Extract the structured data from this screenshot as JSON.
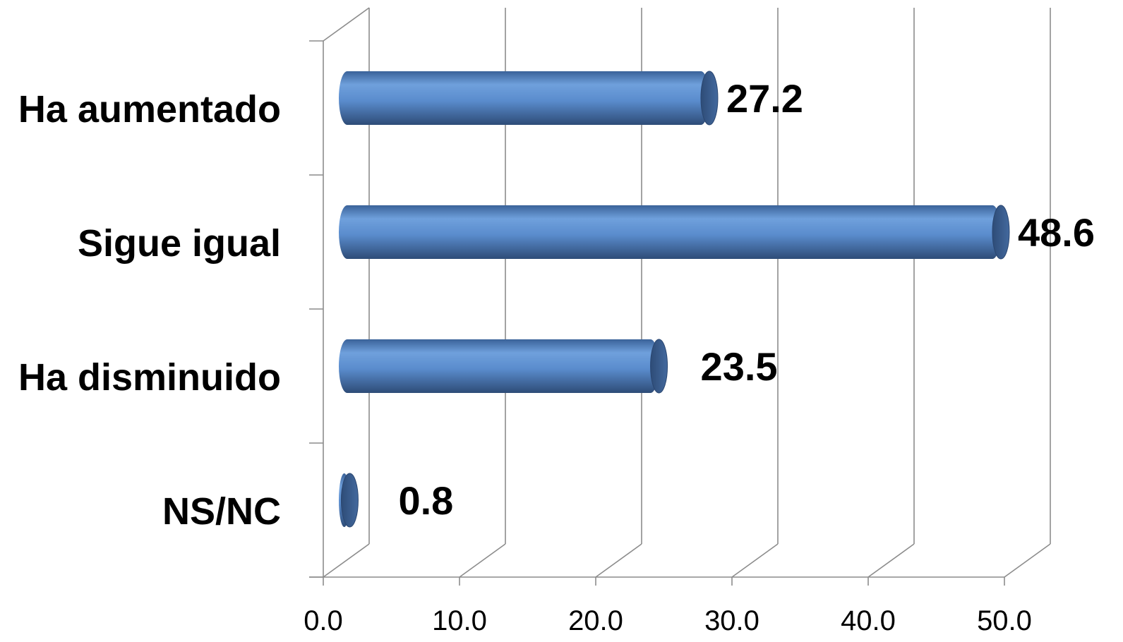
{
  "chart_data": {
    "type": "bar",
    "orientation": "horizontal",
    "style": "3d-cylinder",
    "categories": [
      "Ha aumentado",
      "Sigue igual",
      "Ha disminuido",
      "NS/NC"
    ],
    "values": [
      27.2,
      48.6,
      23.5,
      0.8
    ],
    "value_labels": [
      "27.2",
      "48.6",
      "23.5",
      "0.8"
    ],
    "xticks": [
      "0.0",
      "10.0",
      "20.0",
      "30.0",
      "40.0",
      "50.0"
    ],
    "xlim": [
      0,
      50
    ],
    "grid": true,
    "legend": "none",
    "colors": {
      "bar_light": "#6fa0dc",
      "bar_mid": "#4f81bd",
      "bar_dark": "#2f4e78",
      "cap": "#3b5f8f",
      "grid": "#8c8c8c"
    }
  }
}
